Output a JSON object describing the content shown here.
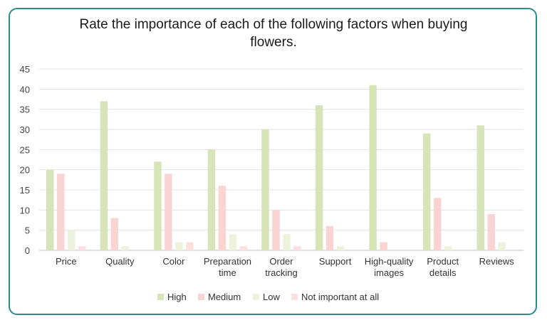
{
  "chart_data": {
    "type": "bar",
    "title": "Rate the importance of each of the following factors when buying flowers.",
    "categories": [
      [
        "Price"
      ],
      [
        "Quality"
      ],
      [
        "Color"
      ],
      [
        "Preparation",
        "time"
      ],
      [
        "Order",
        "tracking"
      ],
      [
        "Support"
      ],
      [
        "High-quality",
        "images"
      ],
      [
        "Product",
        "details"
      ],
      [
        "Reviews"
      ]
    ],
    "series": [
      {
        "name": "High",
        "color": "#d6e4b8",
        "values": [
          20,
          37,
          22,
          25,
          30,
          36,
          41,
          29,
          31
        ]
      },
      {
        "name": "Medium",
        "color": "#f9d4d2",
        "values": [
          19,
          8,
          19,
          16,
          10,
          6,
          2,
          13,
          9
        ]
      },
      {
        "name": "Low",
        "color": "#ecf2dc",
        "values": [
          5,
          1,
          2,
          4,
          4,
          1,
          0,
          1,
          2
        ]
      },
      {
        "name": "Not important at all",
        "color": "#fbe0df",
        "values": [
          1,
          0,
          2,
          1,
          1,
          0,
          0,
          0,
          0
        ]
      }
    ],
    "ylim": [
      0,
      45
    ],
    "yticks": [
      0,
      5,
      10,
      15,
      20,
      25,
      30,
      35,
      40,
      45
    ],
    "grid": true,
    "legend": "bottom"
  }
}
